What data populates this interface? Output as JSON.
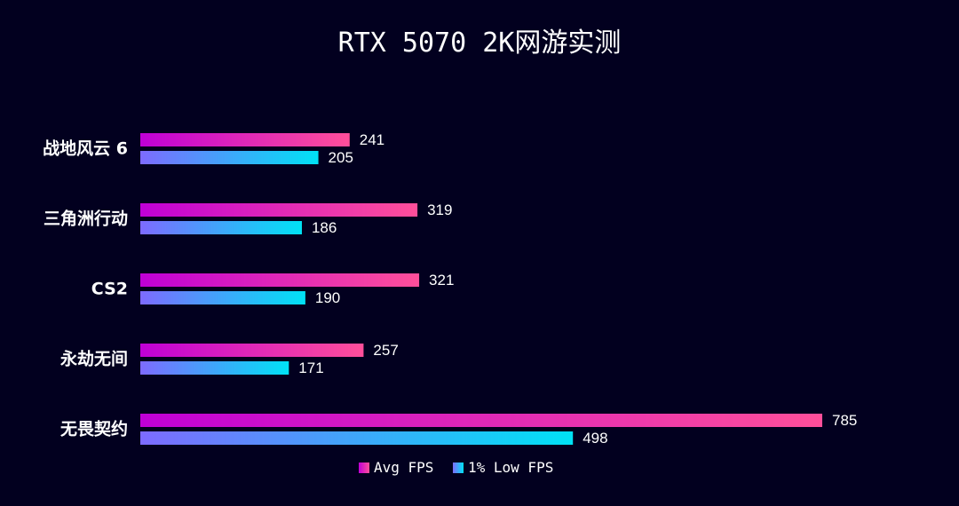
{
  "chart_data": {
    "type": "bar",
    "orientation": "horizontal",
    "title": "RTX 5070 2K网游实测",
    "categories": [
      "战地风云 6",
      "三角洲行动",
      "CS2",
      "永劫无间",
      "无畏契约"
    ],
    "series": [
      {
        "name": "Avg FPS",
        "values": [
          241,
          319,
          321,
          257,
          785
        ],
        "gradient": [
          "#c000d6",
          "#ff4f9a"
        ]
      },
      {
        "name": "1% Low FPS",
        "values": [
          205,
          186,
          190,
          171,
          498
        ],
        "gradient": [
          "#7d6bff",
          "#00e2f5"
        ]
      }
    ],
    "xlim": [
      0,
      785
    ],
    "grid": false,
    "legend_position": "bottom-center",
    "background": "#02001f",
    "text_color": "#ffffff"
  }
}
